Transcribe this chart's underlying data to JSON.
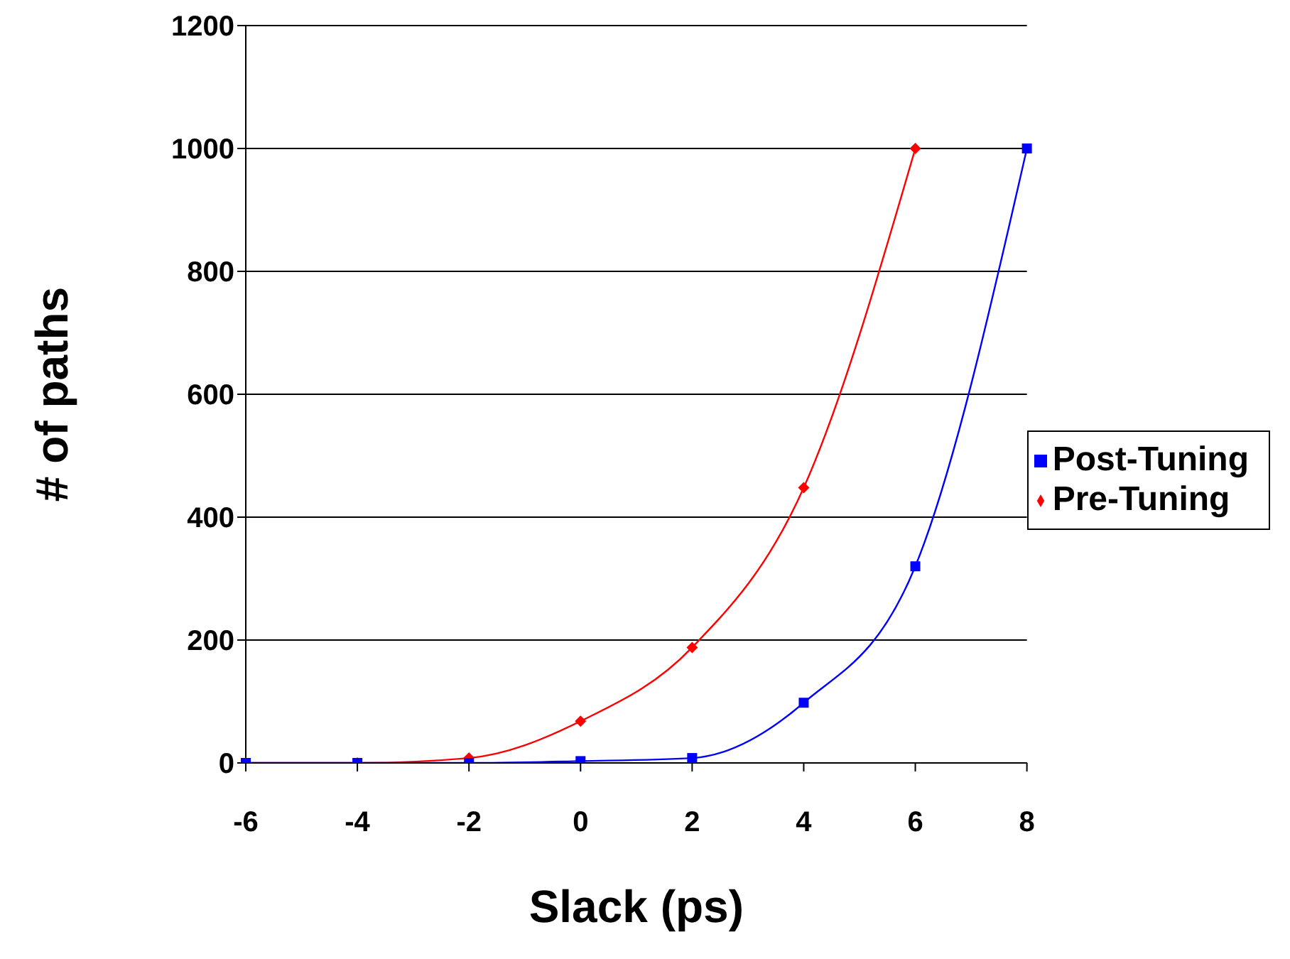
{
  "chart_data": {
    "type": "line",
    "xlabel": "Slack (ps)",
    "ylabel": "# of paths",
    "categories": [
      "-6",
      "-4",
      "-2",
      "0",
      "2",
      "4",
      "6",
      "8"
    ],
    "series": [
      {
        "name": "Pre-Tuning",
        "color": "#ff0000",
        "marker": "diamond",
        "values": [
          0,
          0,
          8,
          68,
          188,
          448,
          1000,
          null
        ]
      },
      {
        "name": "Post-Tuning",
        "color": "#0000ff",
        "marker": "square",
        "values": [
          0,
          0,
          0,
          3,
          8,
          98,
          320,
          1000
        ]
      }
    ],
    "ylim": [
      0,
      1200
    ],
    "yticks": [
      0,
      200,
      400,
      600,
      800,
      1000,
      1200
    ],
    "grid": "y",
    "legend": "right"
  }
}
